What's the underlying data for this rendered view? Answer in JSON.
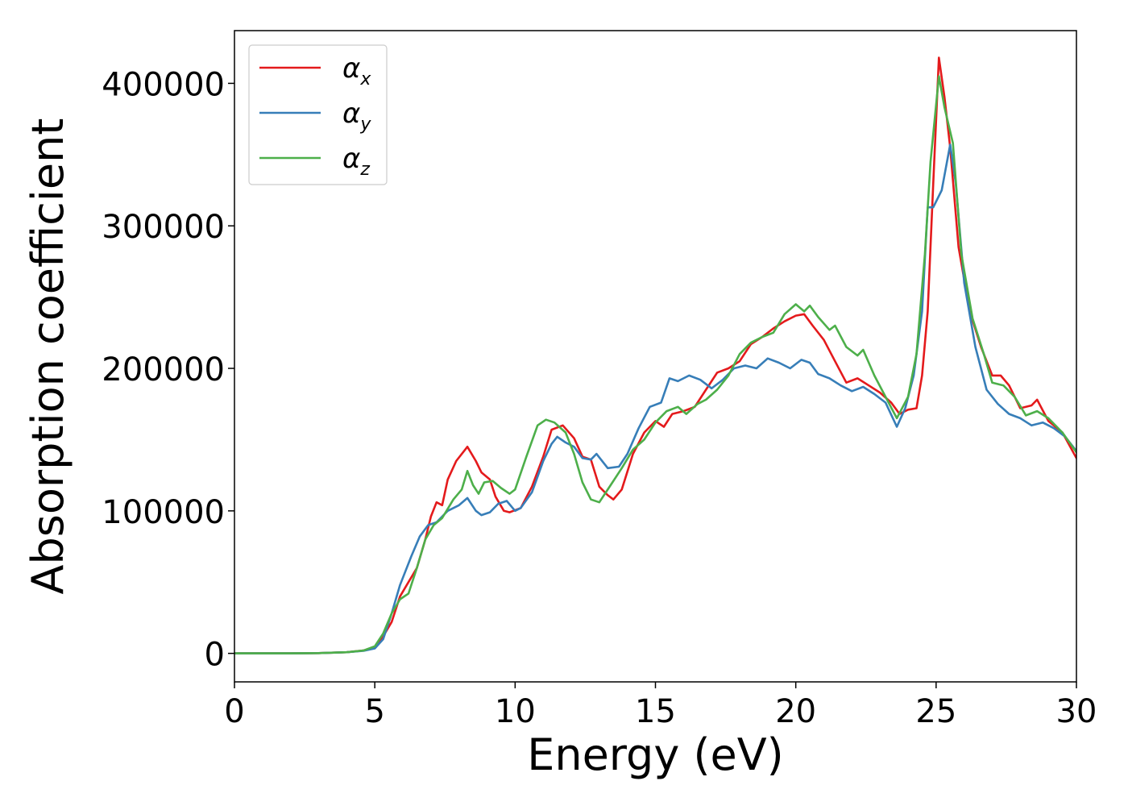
{
  "chart_data": {
    "type": "line",
    "title": "",
    "xlabel": "Energy (eV)",
    "ylabel": "Absorption coefficient",
    "xlim": [
      0,
      30
    ],
    "ylim": [
      -20000,
      437000
    ],
    "xticks": [
      0,
      5,
      10,
      15,
      20,
      25,
      30
    ],
    "yticks": [
      0,
      100000,
      200000,
      300000,
      400000
    ],
    "xtick_labels": [
      "0",
      "5",
      "10",
      "15",
      "20",
      "25",
      "30"
    ],
    "ytick_labels": [
      "0",
      "100000",
      "200000",
      "300000",
      "400000"
    ],
    "grid": false,
    "legend_position": "top-left",
    "series": [
      {
        "name": "α_x",
        "label_main": "α",
        "label_sub": "x",
        "color": "#e41a1c",
        "points": [
          [
            0,
            0
          ],
          [
            2,
            0
          ],
          [
            3,
            200
          ],
          [
            4,
            800
          ],
          [
            4.6,
            2000
          ],
          [
            5,
            4500
          ],
          [
            5.3,
            12000
          ],
          [
            5.6,
            22000
          ],
          [
            5.9,
            40000
          ],
          [
            6.2,
            50000
          ],
          [
            6.5,
            60000
          ],
          [
            6.8,
            80000
          ],
          [
            7.0,
            96000
          ],
          [
            7.2,
            106000
          ],
          [
            7.4,
            104000
          ],
          [
            7.6,
            122000
          ],
          [
            7.9,
            135000
          ],
          [
            8.3,
            145000
          ],
          [
            8.6,
            135000
          ],
          [
            8.8,
            127000
          ],
          [
            9.1,
            122000
          ],
          [
            9.3,
            110000
          ],
          [
            9.6,
            100000
          ],
          [
            9.8,
            99000
          ],
          [
            10.2,
            102000
          ],
          [
            10.6,
            117000
          ],
          [
            11.0,
            138000
          ],
          [
            11.3,
            157000
          ],
          [
            11.7,
            160000
          ],
          [
            12.1,
            151000
          ],
          [
            12.4,
            138000
          ],
          [
            12.7,
            136000
          ],
          [
            13.0,
            117000
          ],
          [
            13.3,
            111000
          ],
          [
            13.5,
            108000
          ],
          [
            13.8,
            115000
          ],
          [
            14.2,
            140000
          ],
          [
            14.6,
            155000
          ],
          [
            15.0,
            163000
          ],
          [
            15.3,
            159000
          ],
          [
            15.6,
            168000
          ],
          [
            16.0,
            170000
          ],
          [
            16.4,
            173000
          ],
          [
            16.8,
            185000
          ],
          [
            17.2,
            197000
          ],
          [
            17.6,
            200000
          ],
          [
            18.0,
            205000
          ],
          [
            18.4,
            217000
          ],
          [
            18.8,
            222000
          ],
          [
            19.2,
            228000
          ],
          [
            19.6,
            233000
          ],
          [
            20.0,
            237000
          ],
          [
            20.3,
            238000
          ],
          [
            20.6,
            230000
          ],
          [
            21.0,
            220000
          ],
          [
            21.4,
            205000
          ],
          [
            21.8,
            190000
          ],
          [
            22.2,
            193000
          ],
          [
            22.6,
            188000
          ],
          [
            23.0,
            183000
          ],
          [
            23.4,
            176000
          ],
          [
            23.7,
            168000
          ],
          [
            24.0,
            171000
          ],
          [
            24.3,
            172000
          ],
          [
            24.5,
            195000
          ],
          [
            24.7,
            240000
          ],
          [
            24.9,
            330000
          ],
          [
            25.1,
            418000
          ],
          [
            25.3,
            390000
          ],
          [
            25.5,
            355000
          ],
          [
            25.8,
            285000
          ],
          [
            26.2,
            240000
          ],
          [
            26.6,
            215000
          ],
          [
            27.0,
            195000
          ],
          [
            27.3,
            195000
          ],
          [
            27.6,
            188000
          ],
          [
            28.0,
            172000
          ],
          [
            28.4,
            174000
          ],
          [
            28.6,
            178000
          ],
          [
            29.0,
            163000
          ],
          [
            29.5,
            155000
          ],
          [
            30,
            137000
          ]
        ]
      },
      {
        "name": "α_y",
        "label_main": "α",
        "label_sub": "y",
        "color": "#377eb8",
        "points": [
          [
            0,
            0
          ],
          [
            2,
            0
          ],
          [
            3,
            200
          ],
          [
            4,
            800
          ],
          [
            4.6,
            1800
          ],
          [
            5,
            3500
          ],
          [
            5.3,
            10000
          ],
          [
            5.6,
            28000
          ],
          [
            5.9,
            48000
          ],
          [
            6.3,
            68000
          ],
          [
            6.6,
            82000
          ],
          [
            6.9,
            90000
          ],
          [
            7.2,
            92000
          ],
          [
            7.6,
            100000
          ],
          [
            8.0,
            104000
          ],
          [
            8.3,
            109000
          ],
          [
            8.6,
            100000
          ],
          [
            8.8,
            97000
          ],
          [
            9.1,
            99000
          ],
          [
            9.4,
            105000
          ],
          [
            9.7,
            107000
          ],
          [
            10.0,
            100000
          ],
          [
            10.2,
            102000
          ],
          [
            10.6,
            113000
          ],
          [
            11.0,
            135000
          ],
          [
            11.3,
            147000
          ],
          [
            11.5,
            152000
          ],
          [
            11.8,
            148000
          ],
          [
            12.1,
            145000
          ],
          [
            12.4,
            137000
          ],
          [
            12.7,
            136000
          ],
          [
            12.9,
            140000
          ],
          [
            13.3,
            130000
          ],
          [
            13.7,
            131000
          ],
          [
            14.0,
            140000
          ],
          [
            14.4,
            158000
          ],
          [
            14.8,
            173000
          ],
          [
            15.2,
            176000
          ],
          [
            15.5,
            193000
          ],
          [
            15.8,
            191000
          ],
          [
            16.2,
            195000
          ],
          [
            16.6,
            192000
          ],
          [
            17.0,
            186000
          ],
          [
            17.4,
            192000
          ],
          [
            17.8,
            200000
          ],
          [
            18.2,
            202000
          ],
          [
            18.6,
            200000
          ],
          [
            19.0,
            207000
          ],
          [
            19.4,
            204000
          ],
          [
            19.8,
            200000
          ],
          [
            20.2,
            206000
          ],
          [
            20.5,
            204000
          ],
          [
            20.8,
            196000
          ],
          [
            21.2,
            193000
          ],
          [
            21.6,
            188000
          ],
          [
            22.0,
            184000
          ],
          [
            22.4,
            187000
          ],
          [
            22.8,
            182000
          ],
          [
            23.2,
            176000
          ],
          [
            23.6,
            159000
          ],
          [
            23.9,
            172000
          ],
          [
            24.2,
            195000
          ],
          [
            24.5,
            240000
          ],
          [
            24.7,
            313000
          ],
          [
            24.9,
            313000
          ],
          [
            25.2,
            325000
          ],
          [
            25.5,
            357000
          ],
          [
            25.7,
            330000
          ],
          [
            26.0,
            260000
          ],
          [
            26.4,
            215000
          ],
          [
            26.8,
            185000
          ],
          [
            27.2,
            175000
          ],
          [
            27.6,
            168000
          ],
          [
            28.0,
            165000
          ],
          [
            28.4,
            160000
          ],
          [
            28.8,
            162000
          ],
          [
            29.2,
            158000
          ],
          [
            29.6,
            152000
          ],
          [
            30,
            142000
          ]
        ]
      },
      {
        "name": "α_z",
        "label_main": "α",
        "label_sub": "z",
        "color": "#4daf4a",
        "points": [
          [
            0,
            0
          ],
          [
            2,
            0
          ],
          [
            3,
            200
          ],
          [
            4,
            800
          ],
          [
            4.6,
            2000
          ],
          [
            5,
            5000
          ],
          [
            5.3,
            14000
          ],
          [
            5.6,
            28000
          ],
          [
            5.9,
            38000
          ],
          [
            6.2,
            42000
          ],
          [
            6.5,
            60000
          ],
          [
            6.8,
            80000
          ],
          [
            7.1,
            90000
          ],
          [
            7.4,
            95000
          ],
          [
            7.8,
            108000
          ],
          [
            8.1,
            115000
          ],
          [
            8.3,
            128000
          ],
          [
            8.5,
            118000
          ],
          [
            8.7,
            112000
          ],
          [
            8.9,
            120000
          ],
          [
            9.2,
            121000
          ],
          [
            9.5,
            116000
          ],
          [
            9.8,
            112000
          ],
          [
            10.0,
            115000
          ],
          [
            10.4,
            138000
          ],
          [
            10.8,
            160000
          ],
          [
            11.1,
            164000
          ],
          [
            11.4,
            162000
          ],
          [
            11.8,
            155000
          ],
          [
            12.1,
            140000
          ],
          [
            12.4,
            120000
          ],
          [
            12.7,
            108000
          ],
          [
            13.0,
            106000
          ],
          [
            13.4,
            118000
          ],
          [
            13.8,
            130000
          ],
          [
            14.2,
            143000
          ],
          [
            14.6,
            150000
          ],
          [
            15.0,
            162000
          ],
          [
            15.4,
            170000
          ],
          [
            15.8,
            173000
          ],
          [
            16.1,
            168000
          ],
          [
            16.5,
            175000
          ],
          [
            16.8,
            178000
          ],
          [
            17.2,
            185000
          ],
          [
            17.6,
            195000
          ],
          [
            18.0,
            210000
          ],
          [
            18.4,
            218000
          ],
          [
            18.8,
            222000
          ],
          [
            19.2,
            225000
          ],
          [
            19.6,
            238000
          ],
          [
            20.0,
            245000
          ],
          [
            20.3,
            240000
          ],
          [
            20.5,
            244000
          ],
          [
            20.8,
            236000
          ],
          [
            21.2,
            227000
          ],
          [
            21.4,
            230000
          ],
          [
            21.8,
            215000
          ],
          [
            22.2,
            209000
          ],
          [
            22.4,
            213000
          ],
          [
            22.8,
            195000
          ],
          [
            23.2,
            180000
          ],
          [
            23.6,
            165000
          ],
          [
            24.0,
            180000
          ],
          [
            24.3,
            210000
          ],
          [
            24.6,
            280000
          ],
          [
            24.8,
            345000
          ],
          [
            25.1,
            405000
          ],
          [
            25.3,
            383000
          ],
          [
            25.6,
            358000
          ],
          [
            25.9,
            280000
          ],
          [
            26.3,
            235000
          ],
          [
            26.7,
            210000
          ],
          [
            27.0,
            190000
          ],
          [
            27.4,
            188000
          ],
          [
            27.8,
            180000
          ],
          [
            28.2,
            167000
          ],
          [
            28.6,
            170000
          ],
          [
            29.0,
            165000
          ],
          [
            29.5,
            155000
          ],
          [
            30,
            141000
          ]
        ]
      }
    ]
  }
}
